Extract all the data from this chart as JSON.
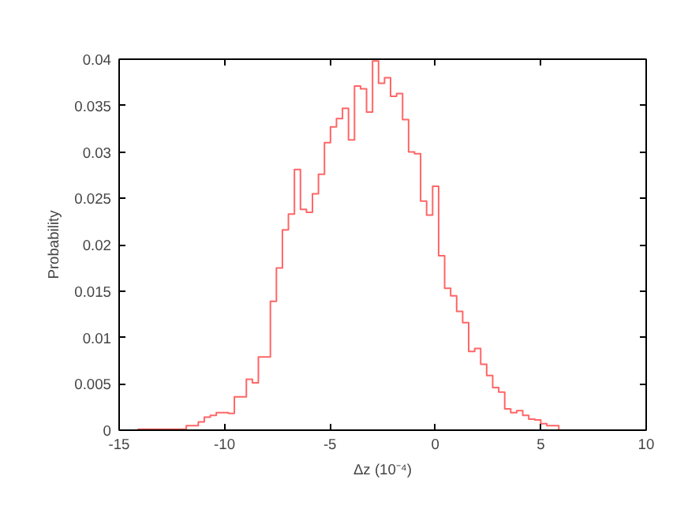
{
  "chart_data": {
    "type": "histogram",
    "xlabel": "Δz (10⁻⁴)",
    "ylabel": "Probability",
    "bins": [
      -14.095,
      -13.81,
      -13.525,
      -13.24,
      -12.955,
      -12.67,
      -12.385,
      -12.1,
      -11.815,
      -11.53,
      -11.245,
      -10.96,
      -10.675,
      -10.39,
      -10.105,
      -9.82,
      -9.535,
      -9.25,
      -8.965,
      -8.68,
      -8.395,
      -8.11,
      -7.825,
      -7.54,
      -7.255,
      -6.97,
      -6.685,
      -6.4,
      -6.115,
      -5.83,
      -5.545,
      -5.26,
      -4.975,
      -4.69,
      -4.405,
      -4.12,
      -3.835,
      -3.55,
      -3.265,
      -2.98,
      -2.695,
      -2.41,
      -2.125,
      -1.84,
      -1.555,
      -1.27,
      -0.985,
      -0.7,
      -0.415,
      -0.13,
      0.155,
      0.44,
      0.725,
      1.01,
      1.295,
      1.58,
      1.865,
      2.15,
      2.435,
      2.72,
      3.005,
      3.29,
      3.575,
      3.86,
      4.145,
      4.43,
      4.715,
      5.0,
      5.285,
      5.57,
      5.855
    ],
    "values": [
      0.0001,
      0.0001,
      0.0001,
      0.0001,
      0.0001,
      0.0001,
      0.0001,
      0.0001,
      0.0005,
      0.0005,
      0.0009,
      0.0014,
      0.0016,
      0.0019,
      0.0019,
      0.0018,
      0.0036,
      0.0036,
      0.0055,
      0.0051,
      0.0079,
      0.0079,
      0.0139,
      0.0175,
      0.0216,
      0.0233,
      0.0281,
      0.0238,
      0.0235,
      0.0255,
      0.0276,
      0.031,
      0.0327,
      0.0336,
      0.0347,
      0.0313,
      0.0371,
      0.0368,
      0.0343,
      0.0398,
      0.0374,
      0.038,
      0.036,
      0.0363,
      0.0335,
      0.03,
      0.0298,
      0.0247,
      0.0232,
      0.0263,
      0.0188,
      0.0153,
      0.0145,
      0.0128,
      0.0116,
      0.0085,
      0.0088,
      0.0071,
      0.0059,
      0.0046,
      0.0041,
      0.0023,
      0.0019,
      0.0021,
      0.0016,
      0.0012,
      0.0011,
      0.0007,
      0.0005,
      0.0005
    ],
    "color": "#ff6666",
    "xlim": [
      -15,
      10
    ],
    "ylim": [
      0,
      0.04
    ],
    "xticks": [
      -15,
      -10,
      -5,
      0,
      5,
      10
    ],
    "yticks": [
      0,
      0.005,
      0.01,
      0.015,
      0.02,
      0.025,
      0.03,
      0.035,
      0.04
    ],
    "grid": false
  }
}
